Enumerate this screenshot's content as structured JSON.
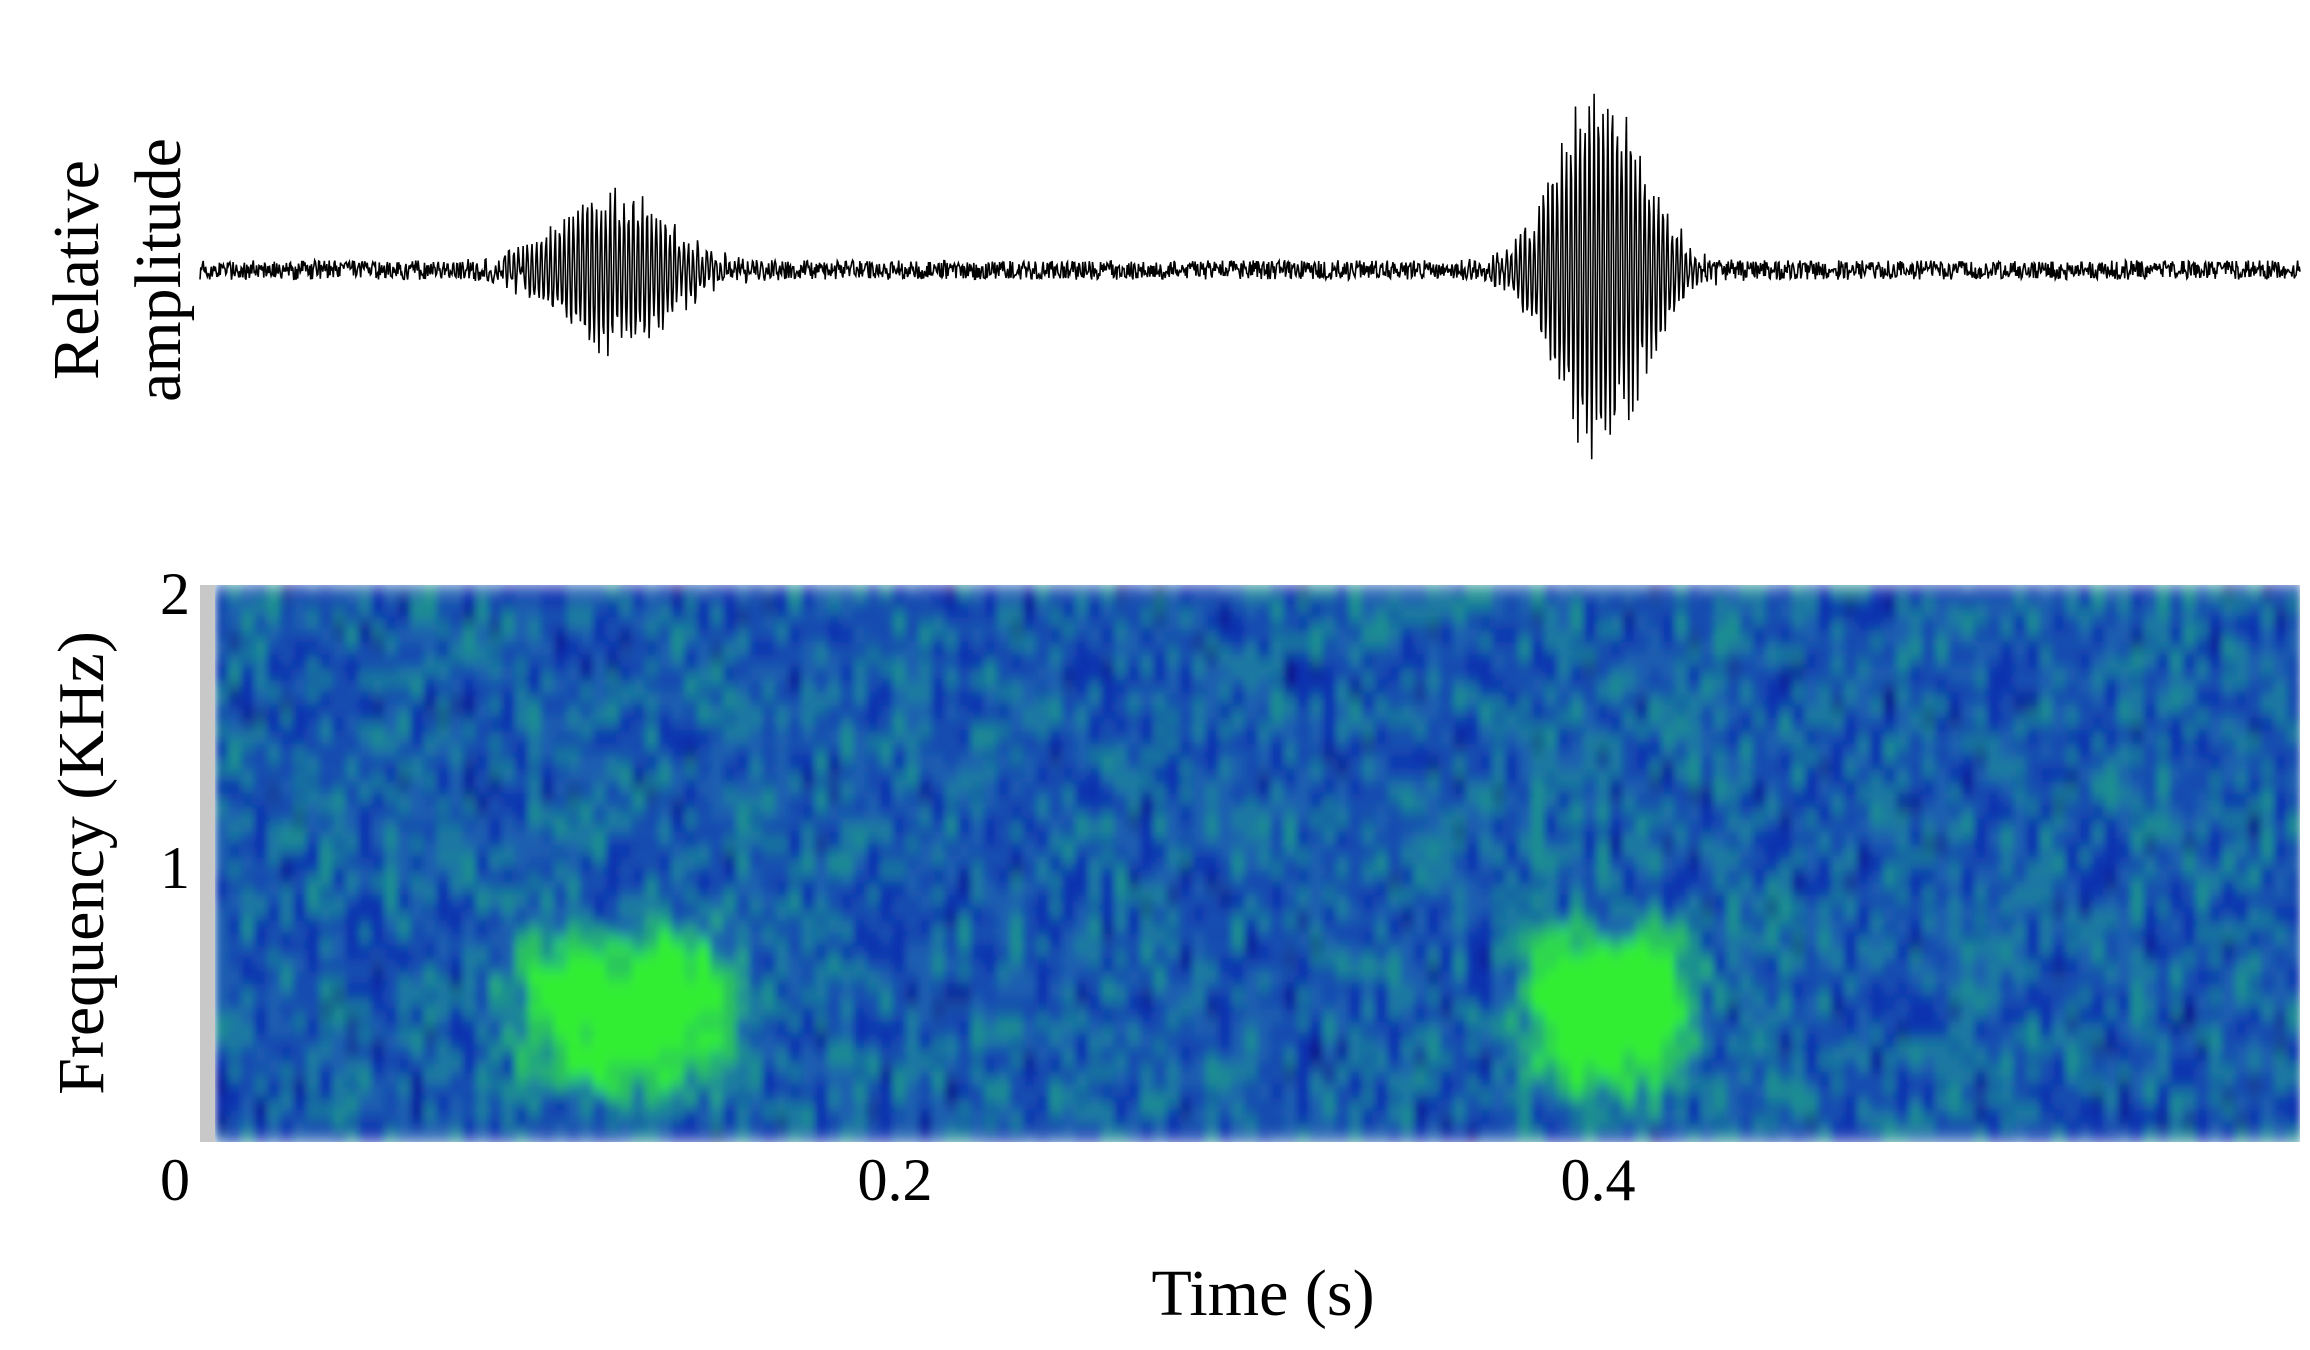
{
  "chart_data": [
    {
      "type": "line",
      "ylabel_lines": [
        "Relative",
        "amplitude"
      ],
      "x_range_s": [
        0,
        0.6
      ],
      "events": [
        {
          "center_s": 0.118,
          "peak_relative": 0.45,
          "width_s": 0.022,
          "label_s": [
            0.088,
            0.15
          ]
        },
        {
          "center_s": 0.4,
          "peak_relative": 1.0,
          "width_s": 0.018,
          "label_s": [
            0.378,
            0.425
          ]
        }
      ],
      "noise_relative": 0.05,
      "line_color": "#000000"
    },
    {
      "type": "heatmap",
      "ylabel": "Frequency (KHz)",
      "xlabel": "Time (s)",
      "x_range_s": [
        0,
        0.6
      ],
      "y_range_khz": [
        0,
        2
      ],
      "x_ticks": [
        "0",
        "0.2",
        "0.4"
      ],
      "x_tick_values": [
        0,
        0.2,
        0.4
      ],
      "y_ticks": [
        "1",
        "2"
      ],
      "y_tick_values": [
        1,
        2
      ],
      "colormap": [
        "#0a0a8a",
        "#1030b0",
        "#1a5fb0",
        "#1a8f90",
        "#2cc060",
        "#33ee33"
      ],
      "energy_blobs": [
        {
          "t_s": [
            0.088,
            0.15
          ],
          "f_khz": [
            0.2,
            0.75
          ],
          "intensity": 0.85
        },
        {
          "t_s": [
            0.378,
            0.425
          ],
          "f_khz": [
            0.2,
            0.75
          ],
          "intensity": 1.0
        }
      ]
    }
  ]
}
